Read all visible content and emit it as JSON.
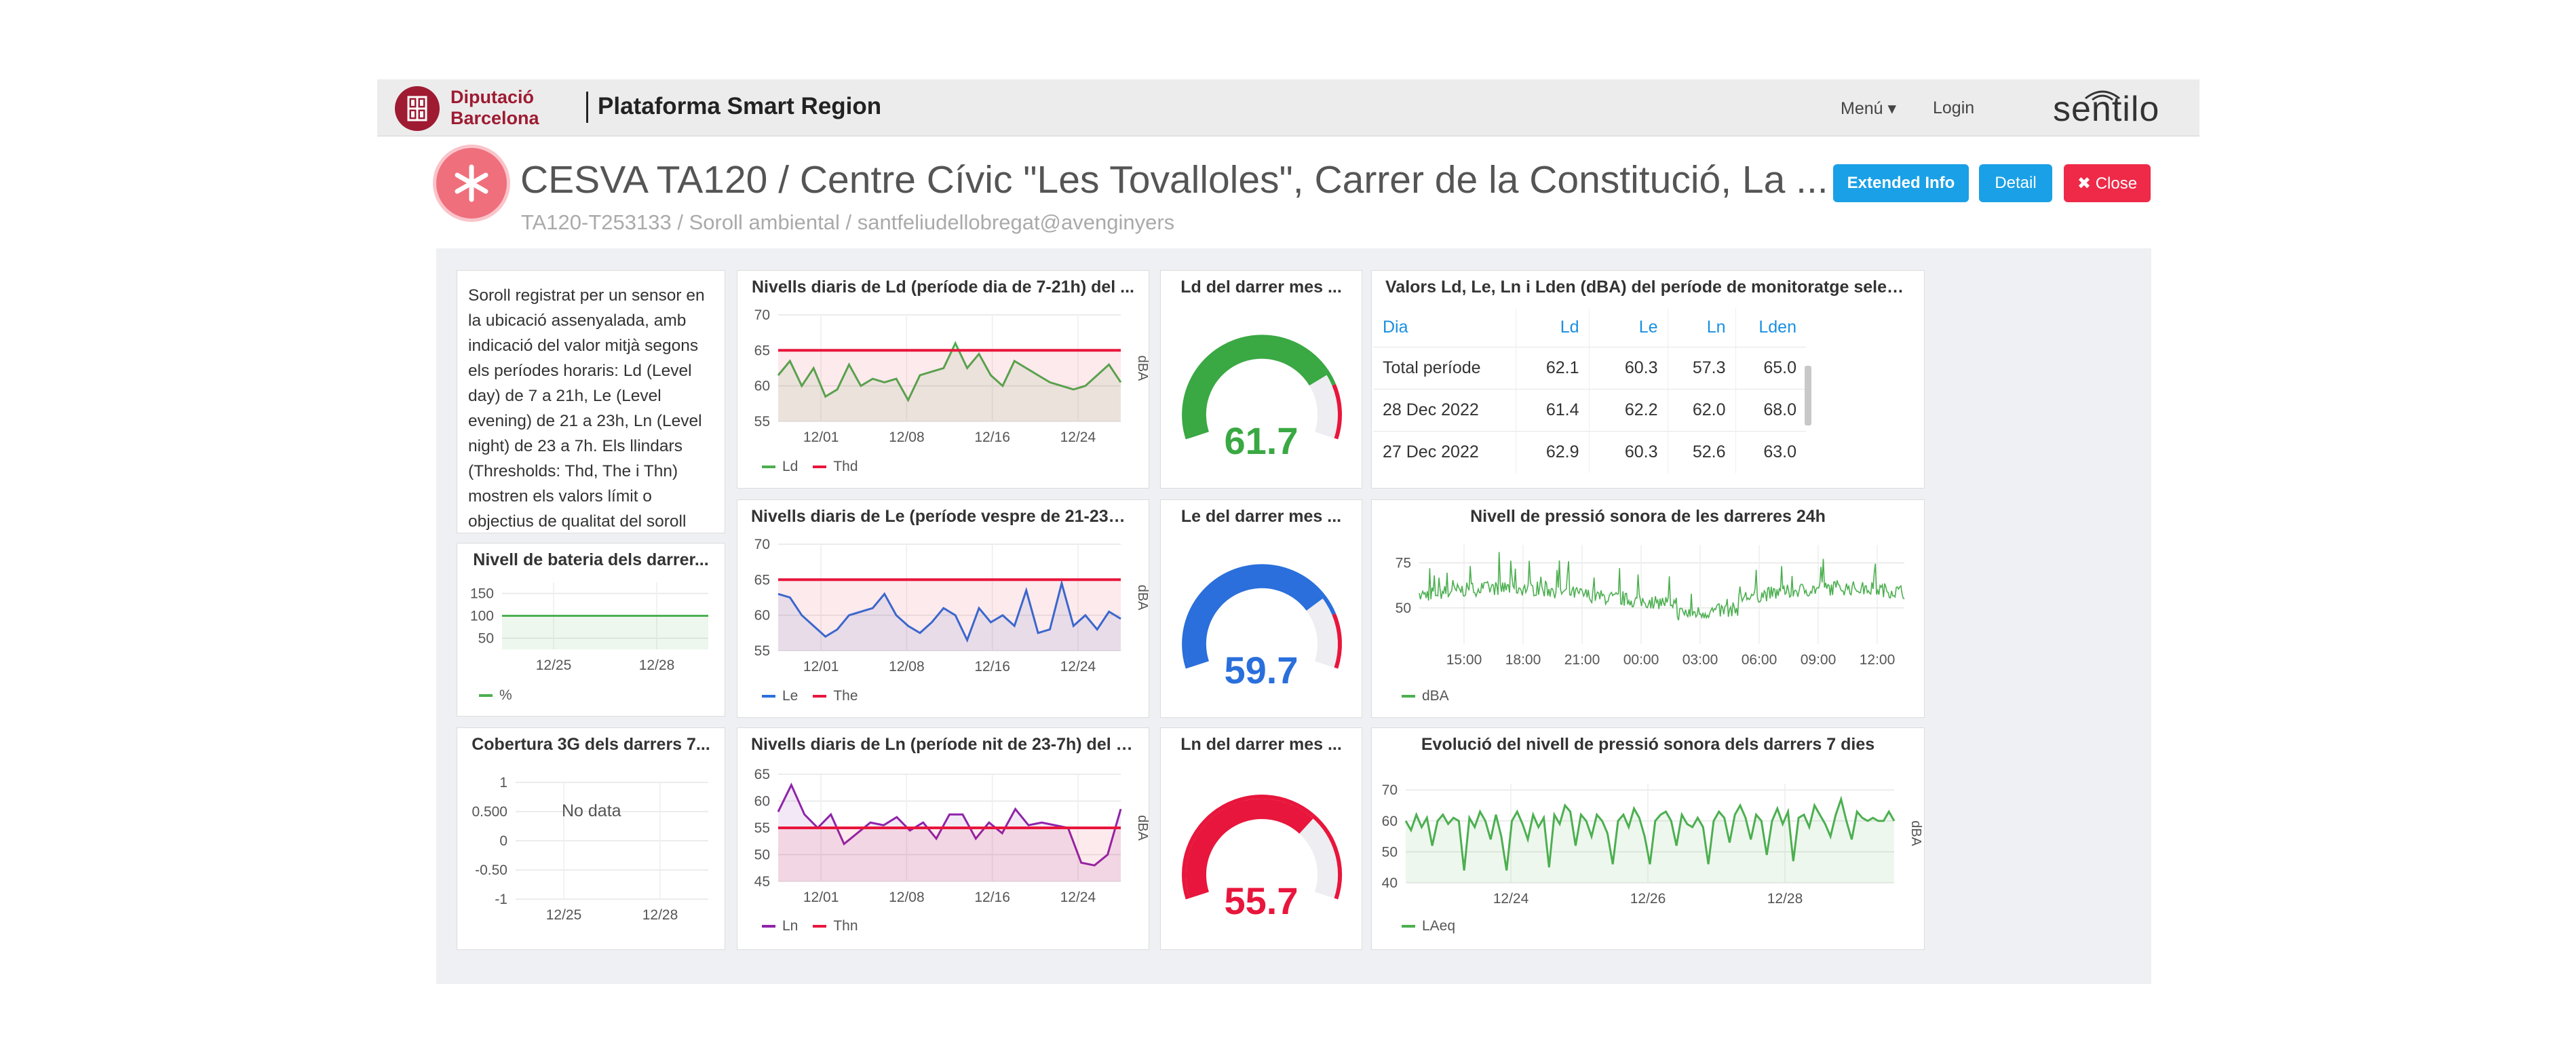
{
  "navbar": {
    "logo_line1": "Diputació",
    "logo_line2": "Barcelona",
    "platform": "Plataforma Smart Region",
    "menu": "Menú ▾",
    "login": "Login",
    "brand": "sentilo"
  },
  "header": {
    "title": "CESVA TA120 / Centre Cívic \"Les Tovalloles\", Carrer de la Constitució, La ...",
    "subtitle": "TA120-T253133 / Soroll ambiental / santfeliudellobregat@avenginyers",
    "btn_extended": "Extended Info",
    "btn_detail": "Detail",
    "btn_close": "✖ Close"
  },
  "colors": {
    "ld": "#4caf50",
    "le": "#2a6fdb",
    "ln": "#8e24aa",
    "threshold": "#e8163c",
    "accent": "#1aa0e6"
  },
  "description": "Soroll registrat per un sensor en la ubicació assenyalada, amb indicació del valor mitjà segons els períodes horaris: Ld (Level day) de 7 a 21h, Le (Level evening) de 21 a 23h, Ln (Level night) de 23 a 7h. Els llindars (Thresholds: Thd, The i Thn) mostren els valors límit o objectius de qualitat del soroll",
  "panels": {
    "ld": {
      "title": "Nivells diaris de Ld (període dia de 7-21h) del ...",
      "series": "Ld",
      "threshold": "Thd",
      "unit": "dBA"
    },
    "le": {
      "title": "Nivells diaris de Le (període vespre de 21-23h)...",
      "series": "Le",
      "threshold": "The",
      "unit": "dBA"
    },
    "ln": {
      "title": "Nivells diaris de Ln (període nit de 23-7h) del d...",
      "series": "Ln",
      "threshold": "Thn",
      "unit": "dBA"
    },
    "gauge_ld": {
      "title": "Ld del darrer mes ...",
      "value": "61.7"
    },
    "gauge_le": {
      "title": "Le del darrer mes ...",
      "value": "59.7"
    },
    "gauge_ln": {
      "title": "Ln del darrer mes ...",
      "value": "55.7"
    },
    "battery": {
      "title": "Nivell de bateria dels darrer...",
      "legend": "%"
    },
    "coverage": {
      "title": "Cobertura 3G dels darrers 7...",
      "no_data": "No data"
    },
    "table": {
      "title": "Valors Ld, Le, Ln i Lden (dBA) del període de monitoratge selecci..."
    },
    "pressure24": {
      "title": "Nivell de pressió sonora de les darreres 24h",
      "legend": "dBA"
    },
    "pressure7": {
      "title": "Evolució del nivell de pressió sonora dels darrers 7 dies",
      "legend": "LAeq",
      "unit": "dBA"
    }
  },
  "table": {
    "headers": [
      "Dia",
      "Ld",
      "Le",
      "Ln",
      "Lden"
    ],
    "rows": [
      [
        "Total període",
        "62.1",
        "60.3",
        "57.3",
        "65.0"
      ],
      [
        "28 Dec 2022",
        "61.4",
        "62.2",
        "62.0",
        "68.0"
      ],
      [
        "27 Dec 2022",
        "62.9",
        "60.3",
        "52.6",
        "63.0"
      ]
    ]
  },
  "chart_data": [
    {
      "name": "ld",
      "type": "line",
      "x_ticks": [
        "12/01",
        "12/08",
        "12/16",
        "12/24"
      ],
      "y_ticks": [
        55,
        60,
        65,
        70
      ],
      "ylim": [
        55,
        70
      ],
      "series": [
        {
          "name": "Ld",
          "color": "#4caf50",
          "values": [
            61.5,
            63.5,
            60.0,
            62.5,
            58.5,
            59.5,
            63.0,
            60.0,
            61.0,
            60.5,
            61.0,
            58.0,
            61.5,
            62.0,
            62.5,
            66.0,
            62.5,
            64.5,
            61.5,
            60.0,
            63.5,
            62.5,
            61.5,
            60.5,
            60.0,
            59.5,
            60.0,
            61.5,
            63.0,
            60.5
          ]
        },
        {
          "name": "Thd",
          "color": "#e8163c",
          "values": [
            65,
            65
          ]
        }
      ]
    },
    {
      "name": "le",
      "type": "line",
      "x_ticks": [
        "12/01",
        "12/08",
        "12/16",
        "12/24"
      ],
      "y_ticks": [
        55,
        60,
        65,
        70
      ],
      "ylim": [
        55,
        70
      ],
      "series": [
        {
          "name": "Le",
          "color": "#2a6fdb",
          "values": [
            63.0,
            62.5,
            60.0,
            58.5,
            57.0,
            58.0,
            60.0,
            60.5,
            61.0,
            63.0,
            60.0,
            58.5,
            57.5,
            59.0,
            61.0,
            60.0,
            56.5,
            61.0,
            59.0,
            60.0,
            58.5,
            63.5,
            57.5,
            58.0,
            64.5,
            58.5,
            60.0,
            58.0,
            60.5,
            59.5
          ]
        },
        {
          "name": "The",
          "color": "#e8163c",
          "values": [
            65,
            65
          ]
        }
      ]
    },
    {
      "name": "ln",
      "type": "line",
      "x_ticks": [
        "12/01",
        "12/08",
        "12/16",
        "12/24"
      ],
      "y_ticks": [
        45,
        50,
        55,
        60,
        65
      ],
      "ylim": [
        45,
        65
      ],
      "series": [
        {
          "name": "Ln",
          "color": "#8e24aa",
          "values": [
            58.0,
            63.0,
            57.5,
            55.0,
            57.5,
            52.0,
            54.0,
            56.0,
            55.5,
            57.0,
            54.5,
            56.0,
            53.0,
            57.5,
            57.5,
            53.0,
            56.0,
            54.0,
            58.5,
            55.5,
            56.0,
            55.5,
            55.0,
            48.5,
            48.0,
            50.0,
            58.5
          ]
        },
        {
          "name": "Thn",
          "color": "#e8163c",
          "values": [
            55,
            55
          ]
        }
      ]
    },
    {
      "name": "battery",
      "type": "line",
      "x_ticks": [
        "12/25",
        "12/28"
      ],
      "y_ticks": [
        50,
        100,
        150
      ],
      "ylim": [
        25,
        175
      ],
      "series": [
        {
          "name": "%",
          "color": "#4caf50",
          "values": [
            100,
            100
          ]
        }
      ]
    },
    {
      "name": "coverage",
      "type": "line",
      "x_ticks": [
        "12/25",
        "12/28"
      ],
      "y_ticks": [
        "1",
        "0.500",
        "0",
        "-0.50",
        "-1"
      ],
      "ylim": [
        -1,
        1
      ],
      "series": []
    },
    {
      "name": "pressure24",
      "type": "line",
      "x_ticks": [
        "15:00",
        "18:00",
        "21:00",
        "00:00",
        "03:00",
        "06:00",
        "09:00",
        "12:00"
      ],
      "y_ticks": [
        50,
        75
      ],
      "ylim": [
        30,
        85
      ],
      "series": [
        {
          "name": "dBA",
          "color": "#4caf50",
          "values": []
        }
      ]
    },
    {
      "name": "pressure7",
      "type": "line",
      "x_ticks": [
        "12/24",
        "12/26",
        "12/28"
      ],
      "y_ticks": [
        40,
        50,
        60,
        70
      ],
      "ylim": [
        40,
        72
      ],
      "series": [
        {
          "name": "LAeq",
          "color": "#4caf50",
          "values": [
            60,
            57,
            62,
            58,
            61,
            52,
            60,
            62,
            59,
            61,
            60,
            44,
            61,
            58,
            63,
            60,
            54,
            62,
            55,
            44,
            60,
            63,
            59,
            54,
            62,
            58,
            61,
            45,
            62,
            59,
            65,
            63,
            52,
            62,
            60,
            55,
            62,
            60,
            56,
            46,
            60,
            62,
            58,
            64,
            61,
            55,
            46,
            60,
            62,
            63,
            60,
            52,
            62,
            59,
            58,
            61,
            58,
            46,
            60,
            63,
            61,
            53,
            62,
            65,
            61,
            54,
            62,
            60,
            49,
            60,
            64,
            59,
            63,
            47,
            61,
            62,
            58,
            65,
            62,
            59,
            55,
            62,
            67,
            60,
            54,
            63,
            61,
            60,
            61,
            60,
            60,
            63,
            60
          ]
        }
      ]
    }
  ],
  "gauges": [
    {
      "name": "gauge_ld",
      "value": 61.7,
      "min": 0,
      "max": 80,
      "color": "#3aa843",
      "threshold": 65
    },
    {
      "name": "gauge_le",
      "value": 59.7,
      "min": 0,
      "max": 80,
      "color": "#2a6fdb",
      "threshold": 65
    },
    {
      "name": "gauge_ln",
      "value": 55.7,
      "min": 0,
      "max": 80,
      "color": "#e8163c",
      "threshold": 55
    }
  ]
}
